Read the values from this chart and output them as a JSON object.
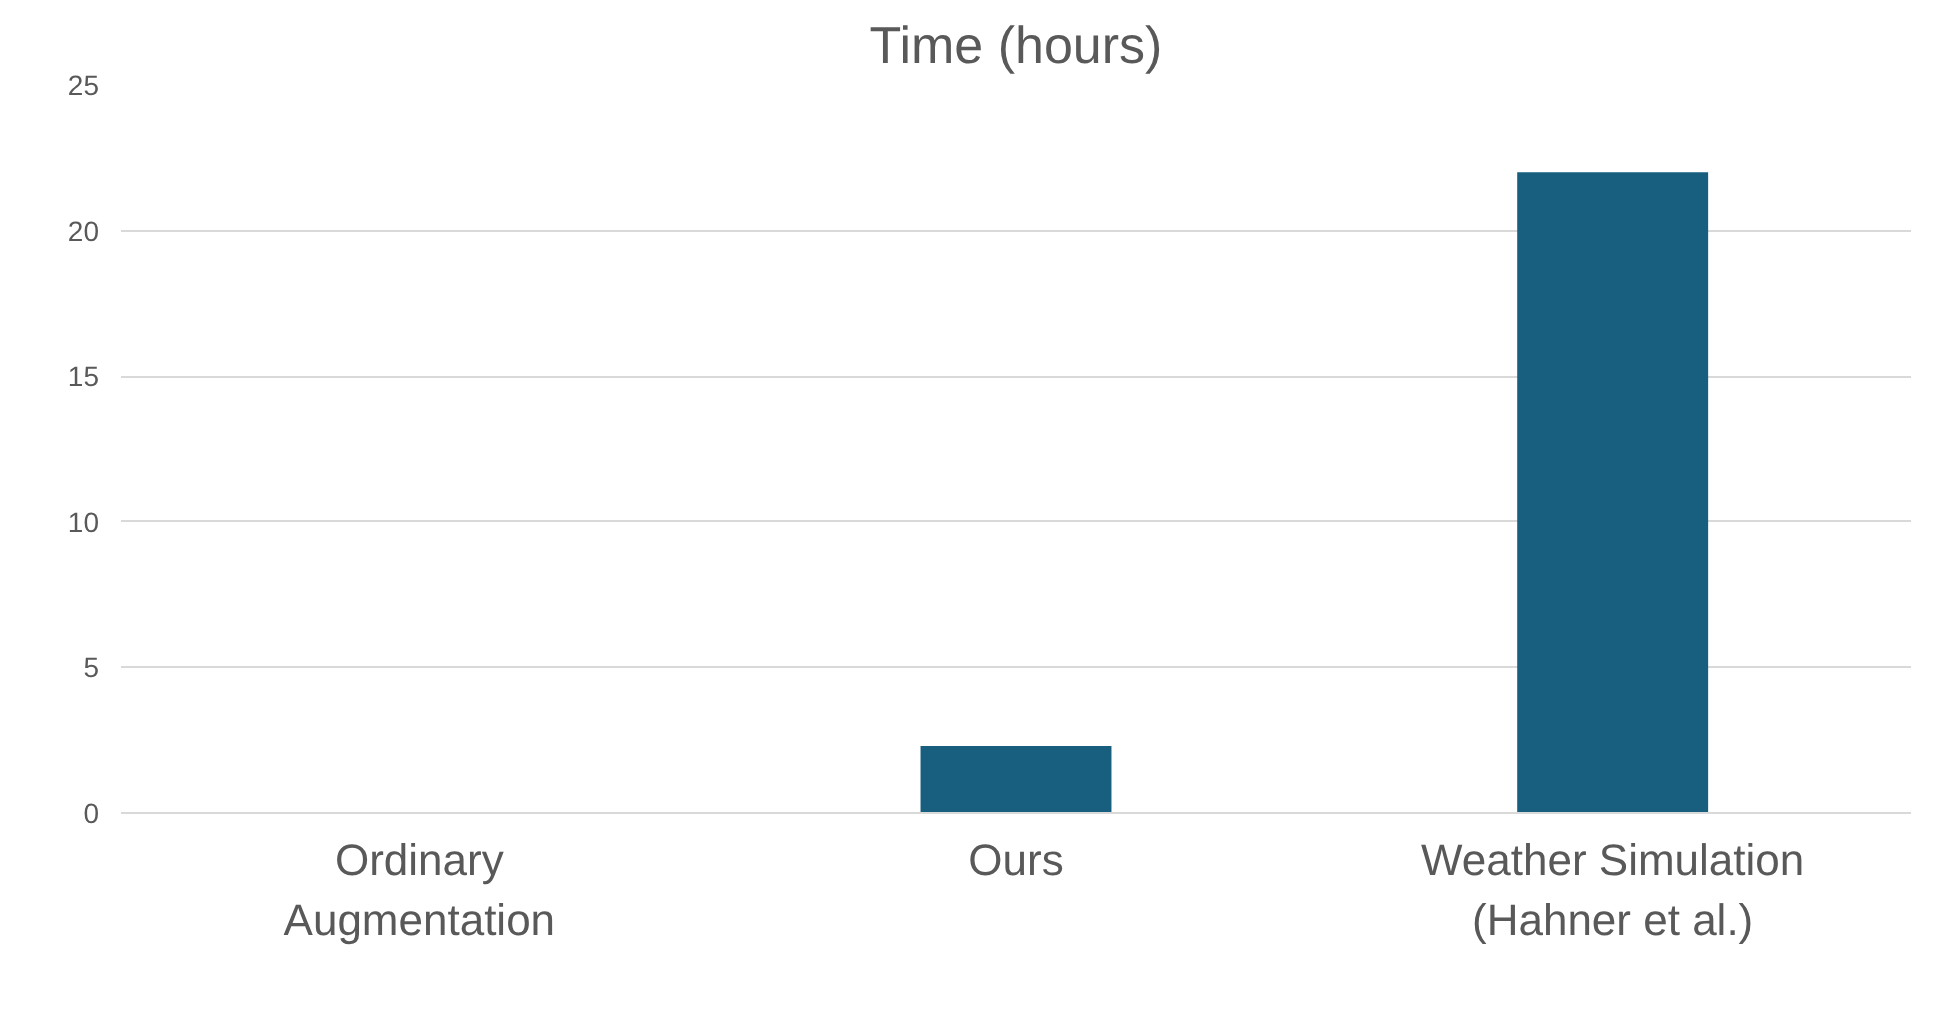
{
  "chart_data": {
    "type": "bar",
    "title": "Time (hours)",
    "categories": [
      "Ordinary\nAugmentation",
      "Ours",
      "Weather Simulation\n(Hahner et al.)"
    ],
    "values": [
      0,
      2.3,
      22.0
    ],
    "color": "#175e7f",
    "ylim": [
      0,
      25
    ],
    "yticks": [
      0,
      5,
      10,
      15,
      20,
      25
    ],
    "grid": "y"
  }
}
